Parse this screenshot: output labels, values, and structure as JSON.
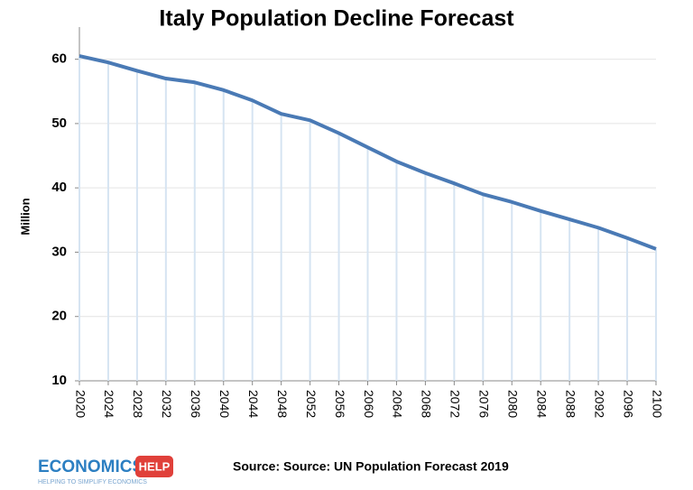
{
  "chart_data": {
    "type": "line",
    "title": "Italy Population Decline Forecast",
    "y_label": "Million",
    "x": [
      2020,
      2024,
      2028,
      2032,
      2036,
      2040,
      2044,
      2048,
      2052,
      2056,
      2060,
      2064,
      2068,
      2072,
      2076,
      2080,
      2084,
      2088,
      2092,
      2096,
      2100
    ],
    "series": [
      {
        "color": "#4a7ab5",
        "values": [
          60.5,
          59.5,
          58.2,
          57.0,
          56.4,
          55.2,
          53.6,
          51.5,
          50.5,
          48.5,
          46.3,
          44.1,
          42.3,
          40.7,
          39.0,
          37.8,
          36.4,
          35.1,
          33.8,
          32.2,
          30.5
        ]
      }
    ],
    "xlim": [
      2020,
      2100
    ],
    "xticks": [
      2020,
      2024,
      2028,
      2032,
      2036,
      2040,
      2044,
      2048,
      2052,
      2056,
      2060,
      2064,
      2068,
      2072,
      2076,
      2080,
      2084,
      2088,
      2092,
      2096,
      2100
    ],
    "ylim": [
      10,
      65
    ],
    "yticks": [
      10,
      20,
      30,
      40,
      50,
      60
    ],
    "grid": true,
    "drop_lines": true,
    "source": "Source: Source:  UN Population Forecast 2019"
  },
  "footer": {
    "logo": "ECONOMICS",
    "badge": "HELP",
    "tagline": "HELPING TO SIMPLIFY ECONOMICS"
  }
}
